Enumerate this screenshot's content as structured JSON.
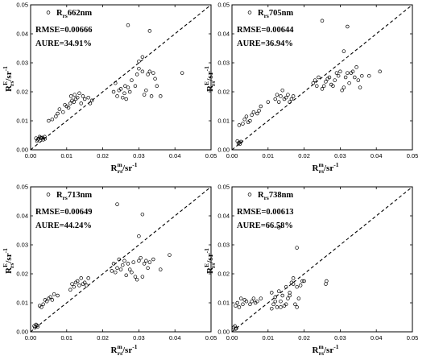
{
  "chart_data": [
    {
      "type": "scatter",
      "legend_label": "Rrs662nm",
      "legend": {
        "base": "R",
        "sub": "rs",
        "rest": "662nm"
      },
      "rmse": "RMSE=0.00666",
      "aure": "AURE=34.91%",
      "xlabel": {
        "base": "R",
        "sup": "m",
        "sub": "rs",
        "rest": "/sr",
        "exp": "-1"
      },
      "ylabel": {
        "base": "R",
        "sup": "E",
        "sub": "rs",
        "rest": "/sr",
        "exp": "-1"
      },
      "xlim": [
        0,
        0.05
      ],
      "ylim": [
        0,
        0.05
      ],
      "xticks": [
        "0.00",
        "0.01",
        "0.02",
        "0.03",
        "0.04",
        "0.05"
      ],
      "yticks": [
        "0.00",
        "0.01",
        "0.02",
        "0.03",
        "0.04",
        "0.05"
      ],
      "reference_line": "1:1",
      "x": [
        0.0015,
        0.002,
        0.0025,
        0.003,
        0.0035,
        0.0018,
        0.0028,
        0.0022,
        0.0033,
        0.0039,
        0.004,
        0.005,
        0.006,
        0.007,
        0.0075,
        0.008,
        0.009,
        0.0095,
        0.01,
        0.0105,
        0.011,
        0.0112,
        0.0115,
        0.012,
        0.0122,
        0.0125,
        0.013,
        0.0135,
        0.014,
        0.0145,
        0.015,
        0.016,
        0.0165,
        0.017,
        0.023,
        0.0235,
        0.024,
        0.0245,
        0.025,
        0.0255,
        0.026,
        0.0262,
        0.0265,
        0.027,
        0.0275,
        0.028,
        0.029,
        0.0295,
        0.03,
        0.031,
        0.0315,
        0.032,
        0.0325,
        0.033,
        0.0335,
        0.034,
        0.0345,
        0.035,
        0.036,
        0.042,
        0.027,
        0.033,
        0.031,
        0.03
      ],
      "y": [
        0.004,
        0.0035,
        0.0045,
        0.004,
        0.0035,
        0.003,
        0.0042,
        0.0038,
        0.0042,
        0.0045,
        0.0038,
        0.01,
        0.0105,
        0.0115,
        0.0125,
        0.014,
        0.013,
        0.0155,
        0.015,
        0.0145,
        0.016,
        0.0185,
        0.017,
        0.0165,
        0.019,
        0.0175,
        0.018,
        0.0195,
        0.016,
        0.0185,
        0.0175,
        0.018,
        0.016,
        0.017,
        0.02,
        0.023,
        0.0185,
        0.0205,
        0.021,
        0.018,
        0.0195,
        0.022,
        0.0175,
        0.0215,
        0.02,
        0.024,
        0.022,
        0.026,
        0.028,
        0.027,
        0.019,
        0.0205,
        0.026,
        0.027,
        0.0185,
        0.0265,
        0.0245,
        0.022,
        0.0185,
        0.0265,
        0.043,
        0.041,
        0.032,
        0.0305
      ]
    },
    {
      "type": "scatter",
      "legend_label": "Rrs705nm",
      "legend": {
        "base": "R",
        "sub": "rs",
        "rest": "705nm"
      },
      "rmse": "RMSE=0.00644",
      "aure": "AURE=36.94%",
      "xlabel": {
        "base": "R",
        "sup": "m",
        "sub": "rs",
        "rest": "/sr",
        "exp": "-1"
      },
      "ylabel": {
        "base": "R",
        "sup": "E",
        "sub": "rs",
        "rest": "/sr",
        "exp": "-1"
      },
      "xlim": [
        0,
        0.05
      ],
      "ylim": [
        0,
        0.05
      ],
      "xticks": [
        "0.00",
        "0.01",
        "0.02",
        "0.03",
        "0.04",
        "0.05"
      ],
      "yticks": [
        "0.00",
        "0.01",
        "0.02",
        "0.03",
        "0.04",
        "0.05"
      ],
      "reference_line": "1:1",
      "x": [
        0.0015,
        0.002,
        0.0025,
        0.0018,
        0.0022,
        0.002,
        0.003,
        0.0035,
        0.004,
        0.0045,
        0.005,
        0.0055,
        0.006,
        0.007,
        0.0075,
        0.008,
        0.01,
        0.012,
        0.0125,
        0.013,
        0.0135,
        0.014,
        0.0145,
        0.015,
        0.0155,
        0.016,
        0.0165,
        0.017,
        0.0225,
        0.023,
        0.0235,
        0.024,
        0.025,
        0.0255,
        0.026,
        0.0265,
        0.027,
        0.0275,
        0.028,
        0.0285,
        0.029,
        0.0295,
        0.03,
        0.0305,
        0.031,
        0.0315,
        0.032,
        0.0325,
        0.033,
        0.0335,
        0.034,
        0.0345,
        0.035,
        0.0355,
        0.036,
        0.038,
        0.041,
        0.025,
        0.032,
        0.031
      ],
      "y": [
        0.003,
        0.0025,
        0.0028,
        0.0022,
        0.002,
        0.0085,
        0.009,
        0.0105,
        0.0115,
        0.0095,
        0.01,
        0.012,
        0.013,
        0.0125,
        0.0135,
        0.015,
        0.0165,
        0.0175,
        0.019,
        0.0165,
        0.0185,
        0.0205,
        0.0175,
        0.018,
        0.019,
        0.0165,
        0.0175,
        0.0185,
        0.023,
        0.024,
        0.022,
        0.025,
        0.021,
        0.022,
        0.0235,
        0.0245,
        0.025,
        0.0225,
        0.022,
        0.024,
        0.0265,
        0.0255,
        0.027,
        0.0205,
        0.0215,
        0.025,
        0.0265,
        0.023,
        0.0265,
        0.027,
        0.025,
        0.0285,
        0.024,
        0.0215,
        0.0255,
        0.0255,
        0.027,
        0.0445,
        0.0425,
        0.034
      ]
    },
    {
      "type": "scatter",
      "legend_label": "Rrs713nm",
      "legend": {
        "base": "R",
        "sub": "rs",
        "rest": "713nm"
      },
      "rmse": "RMSE=0.00649",
      "aure": "AURE=44.24%",
      "xlabel": {
        "base": "R",
        "sup": "m",
        "sub": "rs",
        "rest": "/sr",
        "exp": "-1"
      },
      "ylabel": {
        "base": "R",
        "sup": "E",
        "sub": "rs",
        "rest": "/sr",
        "exp": "-1"
      },
      "xlim": [
        0,
        0.05
      ],
      "ylim": [
        0,
        0.05
      ],
      "xticks": [
        "0.00",
        "0.01",
        "0.02",
        "0.03",
        "0.04",
        "0.05"
      ],
      "yticks": [
        "0.00",
        "0.01",
        "0.02",
        "0.03",
        "0.04",
        "0.05"
      ],
      "reference_line": "1:1",
      "x": [
        0.001,
        0.0015,
        0.002,
        0.0012,
        0.0018,
        0.0025,
        0.003,
        0.0035,
        0.004,
        0.0045,
        0.005,
        0.0055,
        0.006,
        0.0065,
        0.0075,
        0.011,
        0.0115,
        0.012,
        0.0125,
        0.013,
        0.0135,
        0.014,
        0.0145,
        0.015,
        0.0155,
        0.016,
        0.0225,
        0.023,
        0.0235,
        0.024,
        0.0245,
        0.025,
        0.0255,
        0.026,
        0.0265,
        0.027,
        0.0275,
        0.028,
        0.0285,
        0.029,
        0.0295,
        0.03,
        0.0305,
        0.031,
        0.0315,
        0.032,
        0.0325,
        0.033,
        0.034,
        0.036,
        0.0385,
        0.024,
        0.031,
        0.03
      ],
      "y": [
        0.002,
        0.0025,
        0.0018,
        0.0015,
        0.0022,
        0.009,
        0.0085,
        0.0095,
        0.011,
        0.0105,
        0.0115,
        0.012,
        0.011,
        0.013,
        0.0125,
        0.0145,
        0.0165,
        0.0155,
        0.017,
        0.0175,
        0.016,
        0.0185,
        0.0165,
        0.017,
        0.016,
        0.0185,
        0.021,
        0.0235,
        0.0205,
        0.022,
        0.025,
        0.0215,
        0.023,
        0.0245,
        0.0195,
        0.0235,
        0.0215,
        0.0205,
        0.024,
        0.019,
        0.018,
        0.0245,
        0.0255,
        0.019,
        0.0235,
        0.0245,
        0.022,
        0.024,
        0.025,
        0.0215,
        0.0265,
        0.044,
        0.0405,
        0.033
      ]
    },
    {
      "type": "scatter",
      "legend_label": "Rrs738nm",
      "legend": {
        "base": "R",
        "sub": "rs",
        "rest": "738nm"
      },
      "rmse": "RMSE=0.00613",
      "aure": "AURE=66.58%",
      "xlabel": {
        "base": "R",
        "sup": "m",
        "sub": "rs",
        "rest": "/sr",
        "exp": "-1"
      },
      "ylabel": {
        "base": "R",
        "sup": "E",
        "sub": "rs",
        "rest": "/sr",
        "exp": "-1"
      },
      "xlim": [
        0,
        0.05
      ],
      "ylim": [
        0,
        0.05
      ],
      "xticks": [
        "0.00",
        "0.01",
        "0.02",
        "0.03",
        "0.04",
        "0.05"
      ],
      "yticks": [
        "0.00",
        "0.01",
        "0.02",
        "0.03",
        "0.04",
        "0.05"
      ],
      "reference_line": "1:1",
      "x": [
        0.0005,
        0.001,
        0.0008,
        0.0012,
        0.001,
        0.0015,
        0.002,
        0.0025,
        0.003,
        0.0035,
        0.004,
        0.005,
        0.0055,
        0.006,
        0.0065,
        0.007,
        0.008,
        0.011,
        0.0115,
        0.012,
        0.0125,
        0.013,
        0.0135,
        0.014,
        0.0145,
        0.015,
        0.0155,
        0.016,
        0.0165,
        0.017,
        0.0175,
        0.018,
        0.0185,
        0.019,
        0.02,
        0.011,
        0.012,
        0.0135,
        0.015,
        0.016,
        0.017,
        0.018,
        0.0195,
        0.026,
        0.0262,
        0.013,
        0.018
      ],
      "y": [
        0.0015,
        0.001,
        0.002,
        0.0012,
        0.009,
        0.01,
        0.0085,
        0.0115,
        0.0095,
        0.011,
        0.0105,
        0.0095,
        0.0105,
        0.0115,
        0.01,
        0.0105,
        0.0115,
        0.0135,
        0.0095,
        0.012,
        0.0085,
        0.014,
        0.0105,
        0.0125,
        0.009,
        0.0155,
        0.0115,
        0.0135,
        0.017,
        0.0165,
        0.0095,
        0.0155,
        0.0115,
        0.016,
        0.0175,
        0.008,
        0.0105,
        0.0085,
        0.0095,
        0.0125,
        0.0185,
        0.0085,
        0.0175,
        0.0165,
        0.0175,
        0.036,
        0.029
      ]
    }
  ]
}
